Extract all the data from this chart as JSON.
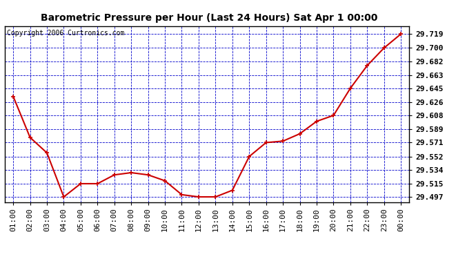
{
  "title": "Barometric Pressure per Hour (Last 24 Hours) Sat Apr 1 00:00",
  "copyright": "Copyright 2006 Curtronics.com",
  "x_labels": [
    "01:00",
    "02:00",
    "03:00",
    "04:00",
    "05:00",
    "06:00",
    "07:00",
    "08:00",
    "09:00",
    "10:00",
    "11:00",
    "12:00",
    "13:00",
    "14:00",
    "15:00",
    "16:00",
    "17:00",
    "18:00",
    "19:00",
    "20:00",
    "21:00",
    "22:00",
    "23:00",
    "00:00"
  ],
  "y_values": [
    29.634,
    29.578,
    29.557,
    29.497,
    29.515,
    29.515,
    29.527,
    29.53,
    29.527,
    29.519,
    29.5,
    29.497,
    29.497,
    29.506,
    29.552,
    29.571,
    29.573,
    29.583,
    29.6,
    29.608,
    29.645,
    29.676,
    29.7,
    29.719
  ],
  "y_ticks": [
    29.497,
    29.515,
    29.534,
    29.552,
    29.571,
    29.589,
    29.608,
    29.626,
    29.645,
    29.663,
    29.682,
    29.7,
    29.719
  ],
  "y_min": 29.49,
  "y_max": 29.73,
  "line_color": "#cc0000",
  "marker_color": "#cc0000",
  "grid_color": "#0000cc",
  "background_color": "#ffffff",
  "plot_bg_color": "#ffffff",
  "title_fontsize": 10,
  "copyright_fontsize": 7,
  "tick_fontsize": 8,
  "marker_size": 5,
  "line_width": 1.5
}
